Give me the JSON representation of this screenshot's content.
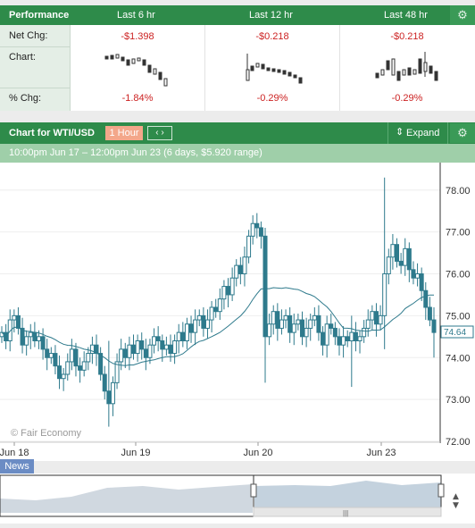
{
  "performance": {
    "title": "Performance",
    "columns": [
      "Last 6 hr",
      "Last 12 hr",
      "Last 48 hr"
    ],
    "row_labels": {
      "net_chg": "Net Chg:",
      "chart": "Chart:",
      "pct_chg": "% Chg:"
    },
    "net_chg": [
      "-$1.398",
      "-$0.218",
      "-$0.218"
    ],
    "pct_chg": [
      "-1.84%",
      "-0.29%",
      "-0.29%"
    ]
  },
  "chart_header": {
    "title": "Chart for WTI/USD",
    "timeframe": "1 Hour",
    "nav": "‹ ›",
    "expand": "Expand",
    "range": "10:00pm Jun 17 – 12:00pm Jun 23 (6 days, $5.920 range)"
  },
  "chart_data": {
    "type": "candlestick",
    "instrument": "WTI/USD",
    "x_labels": [
      "Jun 18",
      "Jun 19",
      "Jun 20",
      "Jun 23"
    ],
    "y_ticks": [
      72.0,
      73.0,
      74.0,
      75.0,
      76.0,
      77.0,
      78.0
    ],
    "ylim": [
      72.0,
      78.4
    ],
    "current_price": "74.64",
    "has_moving_average": true,
    "grid": true,
    "watermark": "© Fair Economy"
  },
  "news_label": "News",
  "colors": {
    "header": "#2e8b4a",
    "candle": "#2e7a8c",
    "price_marker": "#2e7a8c"
  }
}
